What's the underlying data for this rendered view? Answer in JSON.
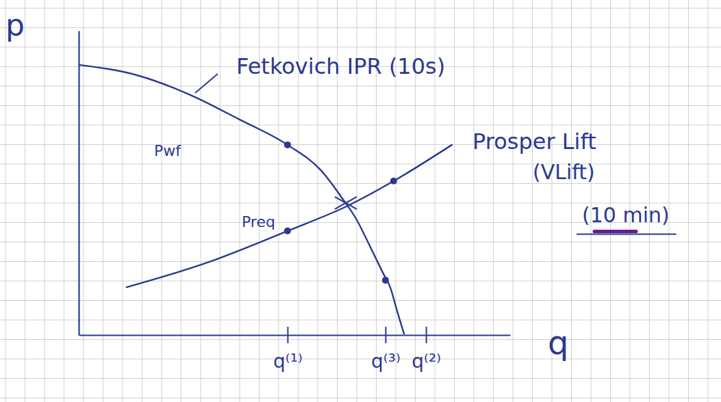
{
  "chart_data": {
    "type": "line",
    "xlabel": "q",
    "ylabel": "p",
    "xlim": [
      0,
      100
    ],
    "ylim": [
      0,
      100
    ],
    "xticks": [
      {
        "value": 48.4,
        "label": "q⁽¹⁾"
      },
      {
        "value": 71.1,
        "label": "q⁽³⁾"
      },
      {
        "value": 80.5,
        "label": "q⁽²⁾"
      }
    ],
    "yticks": [],
    "tick_labels": "x",
    "series": [
      {
        "name": "Fetkovich IPR (10s)",
        "type": "line",
        "color": "#2b3990",
        "x": [
          0,
          13.5,
          26.2,
          37.3,
          48.4,
          56.3,
          61.1,
          64.3,
          67.5,
          70.6,
          72.2,
          73.8,
          75.4
        ],
        "values": [
          88.8,
          85.4,
          78.7,
          70.8,
          62.5,
          53.9,
          44.9,
          38.2,
          29.2,
          20.2,
          15.7,
          7.9,
          0.4
        ]
      },
      {
        "name": "Prosper Lift",
        "type": "line",
        "color": "#2b3990",
        "x": [
          11.1,
          29.4,
          48.4,
          62.7,
          73.0,
          86.5
        ],
        "values": [
          15.7,
          23.6,
          34.2,
          42.7,
          50.6,
          62.5
        ]
      },
      {
        "type": "scatter",
        "marker": "circle",
        "color": "#2b3990",
        "x": [
          48.4,
          71.1,
          73.0,
          48.4
        ],
        "values": [
          62.5,
          18.0,
          50.6,
          34.2
        ]
      },
      {
        "type": "scatter",
        "marker": "x",
        "color": "#2b3990",
        "x": [
          61.9
        ],
        "values": [
          43.4
        ]
      }
    ],
    "annotations": [
      {
        "text": "Pwf",
        "x": 48.4,
        "y": 62.5
      },
      {
        "text": "Preq",
        "x": 48.4,
        "y": 34.2
      },
      {
        "text": "(VLift)"
      },
      {
        "text": "(10 min)"
      }
    ]
  }
}
